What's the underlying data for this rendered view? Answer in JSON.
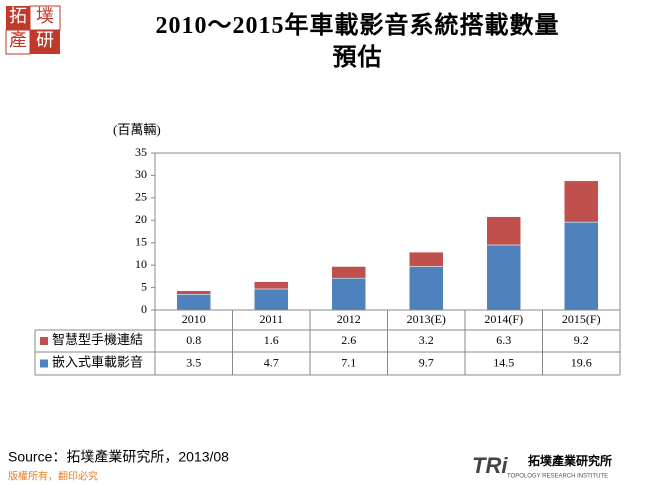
{
  "chart_data": {
    "type": "stacked-bar-table",
    "title": "2010～2015年車載影音系統搭載數量預估",
    "y_label": "(百萬輛)",
    "categories": [
      "2010",
      "2011",
      "2012",
      "2013(E)",
      "2014(F)",
      "2015(F)"
    ],
    "series": [
      {
        "name": "智慧型手機連結",
        "color": "#c0504d",
        "values": [
          0.8,
          1.6,
          2.6,
          3.2,
          6.3,
          9.2
        ]
      },
      {
        "name": "嵌入式車載影音",
        "color": "#4f81bd",
        "values": [
          3.5,
          4.7,
          7.1,
          9.7,
          14.5,
          19.6
        ]
      }
    ],
    "ylim": [
      0,
      35
    ],
    "yticks": [
      0,
      5,
      10,
      15,
      20,
      25,
      30,
      35
    ],
    "grid": false,
    "source": "Source：拓墣產業研究所，2013/08"
  },
  "branding": {
    "logo_top": [
      "拓",
      "墣",
      "產",
      "研"
    ],
    "logo_mark": "TRi",
    "logo_name": "拓墣產業研究所",
    "logo_sub": "TOPOLOGY RESEARCH INSTITUTE",
    "copyright": "版權所有，翻印必究"
  }
}
